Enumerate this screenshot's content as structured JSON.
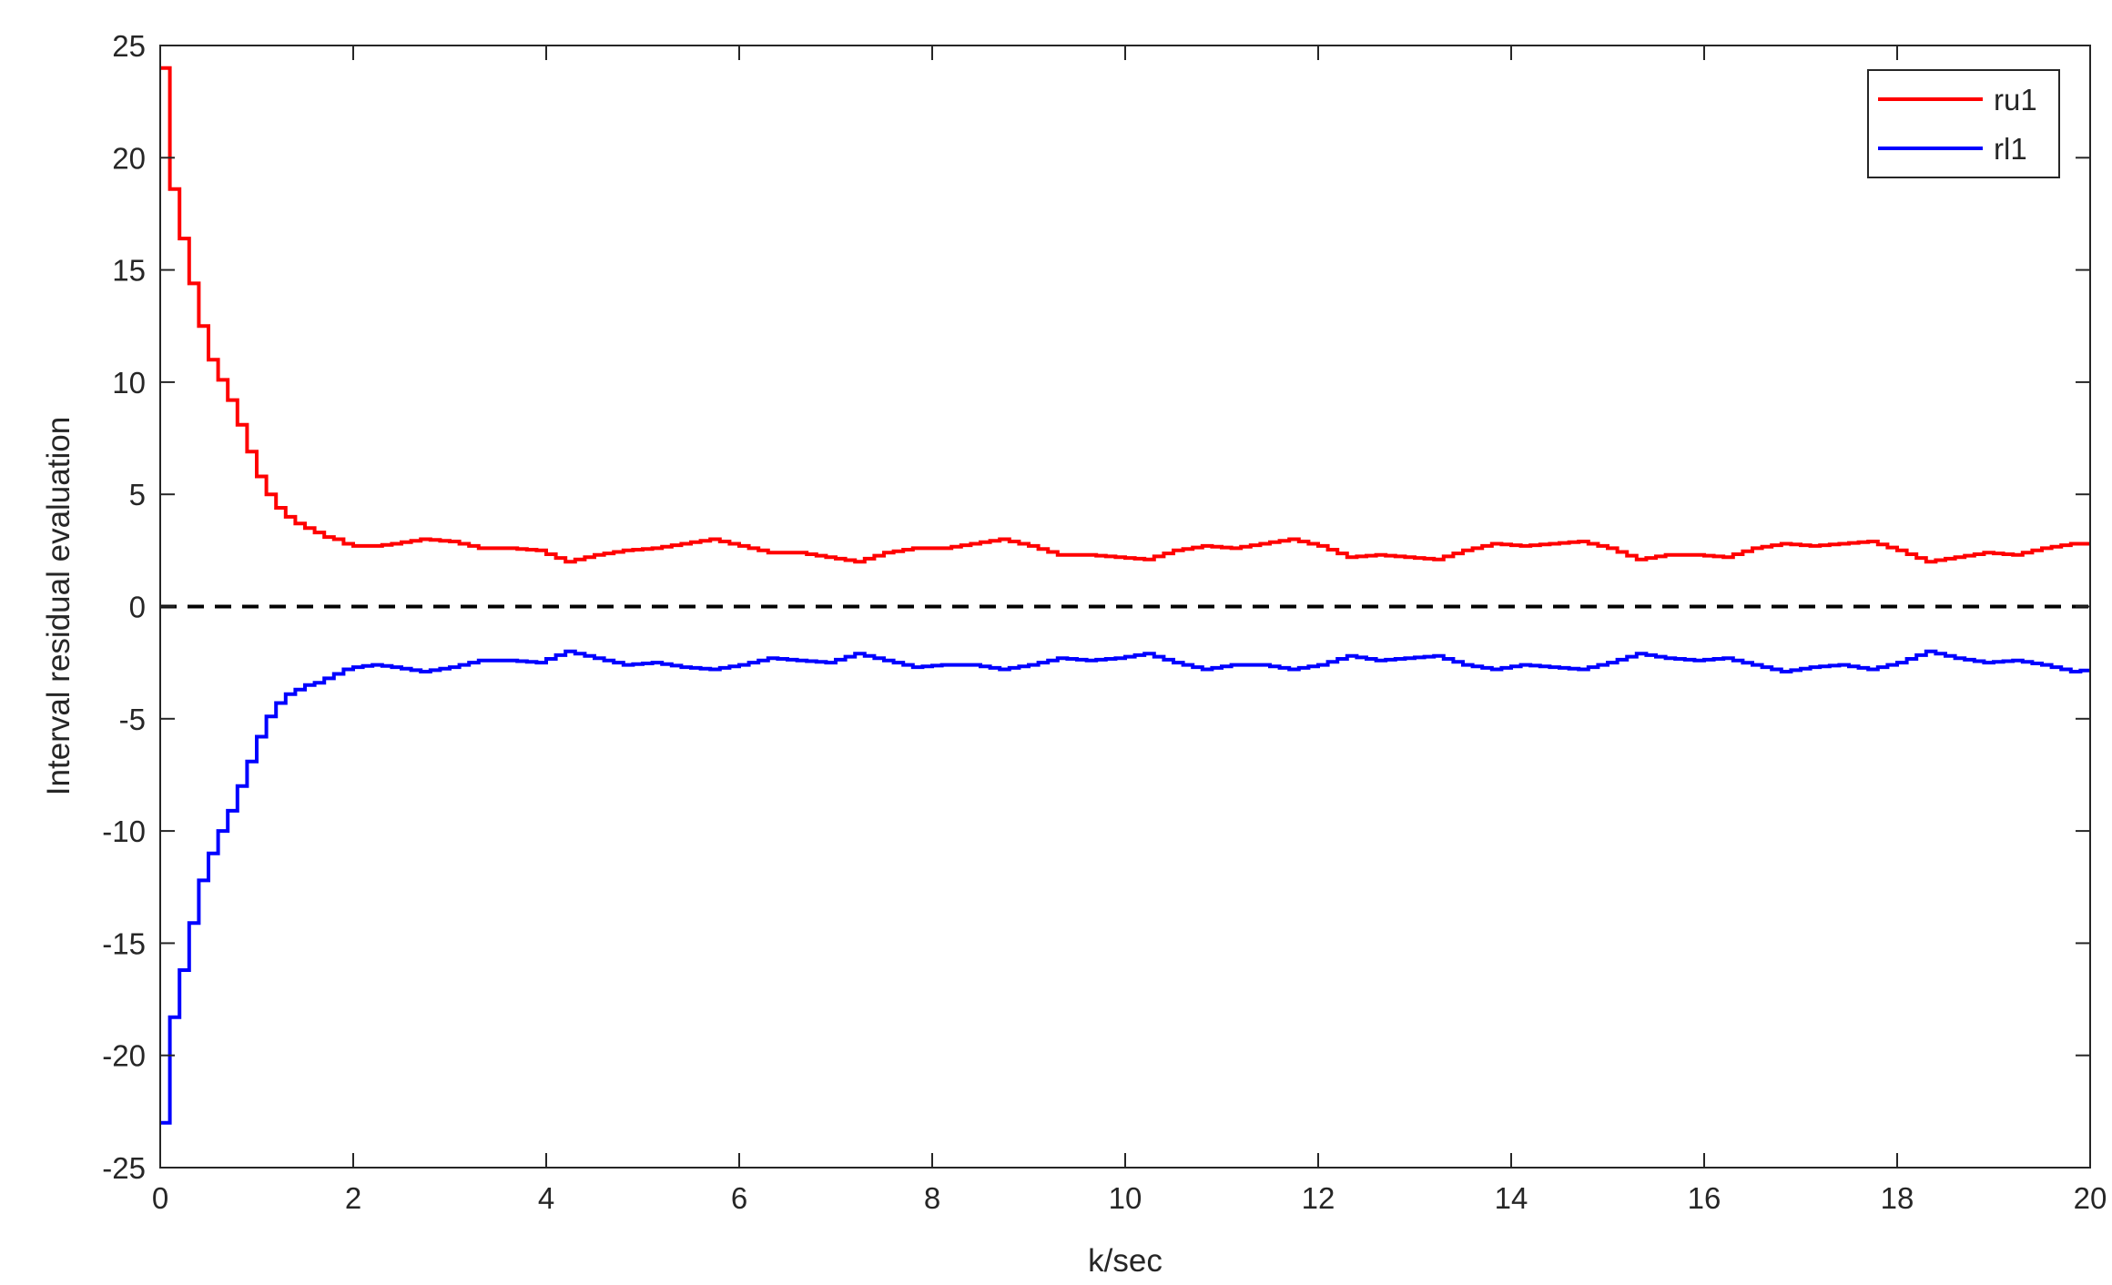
{
  "chart_data": {
    "type": "line",
    "title": "",
    "xlabel": "k/sec",
    "ylabel": "Interval residual evaluation",
    "xlim": [
      0,
      20
    ],
    "ylim": [
      -25,
      25
    ],
    "xticks": [
      0,
      2,
      4,
      6,
      8,
      10,
      12,
      14,
      16,
      18,
      20
    ],
    "yticks": [
      -25,
      -20,
      -15,
      -10,
      -5,
      0,
      5,
      10,
      15,
      20,
      25
    ],
    "grid": false,
    "legend_position": "top-right",
    "sample_period": 0.1,
    "reference_line": {
      "y": 0,
      "style": "dashed",
      "color": "#000000"
    },
    "series": [
      {
        "name": "ru1",
        "color": "#ff0000",
        "style": "stairs",
        "x": [
          0,
          0.1,
          0.2,
          0.3,
          0.4,
          0.5,
          0.6,
          0.7,
          0.8,
          0.9,
          1.0,
          1.1,
          1.2,
          1.3,
          1.4,
          1.5,
          1.6,
          1.7,
          1.8,
          1.9,
          2.0,
          2.2,
          2.4,
          2.7,
          3.0,
          3.3,
          3.6,
          3.9,
          4.2,
          4.5,
          4.8,
          5.1,
          5.4,
          5.7,
          6.0,
          6.3,
          6.6,
          6.9,
          7.2,
          7.5,
          7.8,
          8.1,
          8.4,
          8.7,
          9.0,
          9.3,
          9.6,
          9.9,
          10.2,
          10.5,
          10.8,
          11.1,
          11.4,
          11.7,
          12.0,
          12.3,
          12.6,
          12.9,
          13.2,
          13.5,
          13.8,
          14.1,
          14.4,
          14.7,
          15.0,
          15.3,
          15.6,
          15.9,
          16.2,
          16.5,
          16.8,
          17.1,
          17.4,
          17.7,
          18.0,
          18.3,
          18.6,
          18.9,
          19.2,
          19.5,
          19.8,
          20.0
        ],
        "y": [
          24.0,
          18.6,
          16.4,
          14.4,
          12.5,
          11.0,
          10.1,
          9.2,
          8.1,
          6.9,
          5.8,
          5.0,
          4.4,
          4.0,
          3.7,
          3.5,
          3.3,
          3.1,
          3.0,
          2.8,
          2.7,
          2.7,
          2.8,
          3.0,
          2.9,
          2.6,
          2.6,
          2.5,
          2.0,
          2.3,
          2.5,
          2.6,
          2.8,
          3.0,
          2.7,
          2.4,
          2.4,
          2.2,
          2.0,
          2.4,
          2.6,
          2.6,
          2.8,
          3.0,
          2.7,
          2.3,
          2.3,
          2.2,
          2.1,
          2.5,
          2.7,
          2.6,
          2.8,
          3.0,
          2.7,
          2.2,
          2.3,
          2.2,
          2.1,
          2.5,
          2.8,
          2.7,
          2.8,
          2.9,
          2.6,
          2.1,
          2.3,
          2.3,
          2.2,
          2.6,
          2.8,
          2.7,
          2.8,
          2.9,
          2.5,
          2.0,
          2.2,
          2.4,
          2.3,
          2.6,
          2.8,
          2.8
        ]
      },
      {
        "name": "rl1",
        "color": "#0000ff",
        "style": "stairs",
        "x": [
          0,
          0.1,
          0.2,
          0.3,
          0.4,
          0.5,
          0.6,
          0.7,
          0.8,
          0.9,
          1.0,
          1.1,
          1.2,
          1.3,
          1.4,
          1.5,
          1.6,
          1.7,
          1.8,
          1.9,
          2.0,
          2.2,
          2.4,
          2.7,
          3.0,
          3.3,
          3.6,
          3.9,
          4.2,
          4.5,
          4.8,
          5.1,
          5.4,
          5.7,
          6.0,
          6.3,
          6.6,
          6.9,
          7.2,
          7.5,
          7.8,
          8.1,
          8.4,
          8.7,
          9.0,
          9.3,
          9.6,
          9.9,
          10.2,
          10.5,
          10.8,
          11.1,
          11.4,
          11.7,
          12.0,
          12.3,
          12.6,
          12.9,
          13.2,
          13.5,
          13.8,
          14.1,
          14.4,
          14.7,
          15.0,
          15.3,
          15.6,
          15.9,
          16.2,
          16.5,
          16.8,
          17.1,
          17.4,
          17.7,
          18.0,
          18.3,
          18.6,
          18.9,
          19.2,
          19.5,
          19.8,
          20.0
        ],
        "y": [
          -23.0,
          -18.3,
          -16.2,
          -14.1,
          -12.2,
          -11.0,
          -10.0,
          -9.1,
          -8.0,
          -6.9,
          -5.8,
          -4.9,
          -4.3,
          -3.9,
          -3.7,
          -3.5,
          -3.4,
          -3.2,
          -3.0,
          -2.8,
          -2.7,
          -2.6,
          -2.7,
          -2.9,
          -2.7,
          -2.4,
          -2.4,
          -2.5,
          -2.0,
          -2.3,
          -2.6,
          -2.5,
          -2.7,
          -2.8,
          -2.6,
          -2.3,
          -2.4,
          -2.5,
          -2.1,
          -2.4,
          -2.7,
          -2.6,
          -2.6,
          -2.8,
          -2.6,
          -2.3,
          -2.4,
          -2.3,
          -2.1,
          -2.5,
          -2.8,
          -2.6,
          -2.6,
          -2.8,
          -2.6,
          -2.2,
          -2.4,
          -2.3,
          -2.2,
          -2.6,
          -2.8,
          -2.6,
          -2.7,
          -2.8,
          -2.5,
          -2.1,
          -2.3,
          -2.4,
          -2.3,
          -2.6,
          -2.9,
          -2.7,
          -2.6,
          -2.8,
          -2.5,
          -2.0,
          -2.3,
          -2.5,
          -2.4,
          -2.6,
          -2.9,
          -2.8
        ]
      }
    ]
  }
}
